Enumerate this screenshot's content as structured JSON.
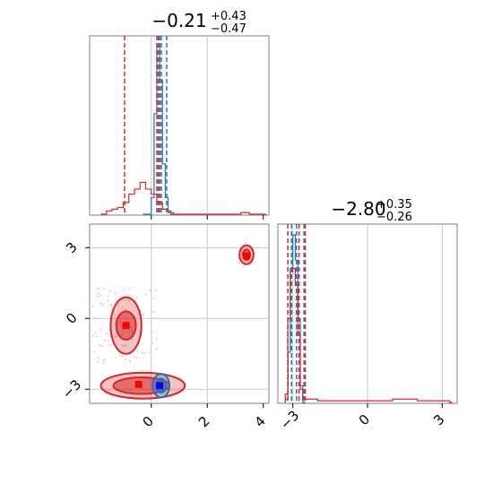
{
  "chart_data": [
    {
      "panel": "marginal-param-1",
      "type": "histogram",
      "title": {
        "main": "−0.21",
        "sup": "+0.43",
        "sub": "−0.47"
      },
      "xlim": [
        -2.2,
        4.2
      ],
      "grid": true,
      "x_ticks": [],
      "series": [
        {
          "name": "",
          "color": "#1f77b4",
          "bins": [
            [
              -0.3,
              0.0
            ],
            [
              0.0,
              0.1
            ],
            [
              0.1,
              0.6
            ],
            [
              0.2,
              1.0
            ],
            [
              0.3,
              0.8
            ],
            [
              0.4,
              0.3
            ],
            [
              0.5,
              0.1
            ],
            [
              0.6,
              0.02
            ],
            [
              0.7,
              0.0
            ]
          ],
          "quantiles": [
            0.25,
            0.36,
            0.55
          ]
        },
        {
          "name": "",
          "color": "#d62728",
          "bins": [
            [
              -1.8,
              0.0
            ],
            [
              -1.6,
              0.02
            ],
            [
              -1.4,
              0.03
            ],
            [
              -1.2,
              0.04
            ],
            [
              -1.0,
              0.07
            ],
            [
              -0.8,
              0.12
            ],
            [
              -0.6,
              0.15
            ],
            [
              -0.4,
              0.19
            ],
            [
              -0.2,
              0.15
            ],
            [
              0.0,
              0.12
            ],
            [
              0.2,
              0.07
            ],
            [
              0.4,
              0.03
            ],
            [
              0.6,
              0.01
            ],
            [
              0.8,
              0.0
            ],
            [
              3.2,
              0.01
            ],
            [
              3.5,
              0.0
            ],
            [
              3.8,
              0.0
            ],
            [
              4.0,
              0.0
            ]
          ],
          "quantiles": [
            -0.95,
            0.2,
            0.3
          ]
        }
      ]
    },
    {
      "panel": "marginal-param-2",
      "type": "histogram",
      "title": {
        "main": "−2.80",
        "sup": "+0.35",
        "sub": "−0.26"
      },
      "xlim": [
        -3.6,
        3.6
      ],
      "grid": true,
      "x_ticks": [
        "−3",
        "0",
        "3"
      ],
      "series": [
        {
          "name": "",
          "color": "#1f77b4",
          "bins": [
            [
              -3.3,
              0.02
            ],
            [
              -3.2,
              0.3
            ],
            [
              -3.1,
              0.8
            ],
            [
              -3.0,
              1.0
            ],
            [
              -2.9,
              0.85
            ],
            [
              -2.8,
              0.5
            ],
            [
              -2.7,
              0.1
            ],
            [
              -2.6,
              0.0
            ]
          ],
          "quantiles": [
            -3.05,
            -2.85,
            -2.55
          ]
        },
        {
          "name": "",
          "color": "#d62728",
          "bins": [
            [
              -3.3,
              0.05
            ],
            [
              -3.2,
              0.5
            ],
            [
              -3.1,
              0.78
            ],
            [
              -3.0,
              0.8
            ],
            [
              -2.9,
              0.7
            ],
            [
              -2.8,
              0.4
            ],
            [
              -2.7,
              0.08
            ],
            [
              -2.6,
              0.02
            ],
            [
              -2.4,
              0.02
            ],
            [
              -2.0,
              0.01
            ],
            [
              -1.0,
              0.01
            ],
            [
              0.0,
              0.01
            ],
            [
              1.0,
              0.02
            ],
            [
              2.0,
              0.01
            ],
            [
              3.0,
              0.01
            ],
            [
              3.3,
              0.0
            ]
          ],
          "quantiles": [
            -3.2,
            -2.75,
            -2.5
          ]
        }
      ]
    },
    {
      "panel": "joint-2d",
      "type": "contour",
      "xlim": [
        -2.2,
        4.2
      ],
      "ylim": [
        -3.6,
        4.0
      ],
      "grid": true,
      "x_ticks": [
        "0",
        "2",
        "4"
      ],
      "y_ticks": [
        "3",
        "0",
        "−3"
      ],
      "series": [
        {
          "name": "",
          "color": "#d62728",
          "regions": [
            {
              "cx": -0.3,
              "cy": -2.85,
              "rx": 1.5,
              "ry": 0.55,
              "level": "outer"
            },
            {
              "cx": -0.35,
              "cy": -2.85,
              "rx": 1.0,
              "ry": 0.35,
              "level": "inner"
            },
            {
              "cx": -0.9,
              "cy": -0.3,
              "rx": 0.55,
              "ry": 1.2,
              "level": "outer"
            },
            {
              "cx": -0.9,
              "cy": -0.3,
              "rx": 0.35,
              "ry": 0.6,
              "level": "inner"
            },
            {
              "cx": 3.4,
              "cy": 2.7,
              "rx": 0.25,
              "ry": 0.4,
              "level": "outer"
            },
            {
              "cx": 3.4,
              "cy": 2.7,
              "rx": 0.13,
              "ry": 0.22,
              "level": "inner"
            }
          ],
          "points": [
            [
              -0.9,
              -0.3
            ],
            [
              -0.45,
              -2.8
            ],
            [
              3.4,
              2.65
            ]
          ]
        },
        {
          "name": "",
          "color": "#1f77b4",
          "regions": [
            {
              "cx": 0.35,
              "cy": -2.85,
              "rx": 0.3,
              "ry": 0.5,
              "level": "outer"
            },
            {
              "cx": 0.35,
              "cy": -2.85,
              "rx": 0.18,
              "ry": 0.3,
              "level": "inner"
            }
          ],
          "points": [
            [
              0.3,
              -2.85
            ]
          ]
        }
      ]
    }
  ]
}
